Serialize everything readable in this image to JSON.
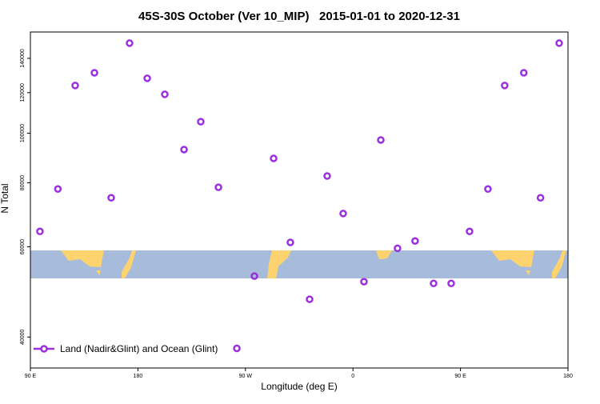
{
  "chart_data": {
    "type": "scatter",
    "title": "45S-30S October (Ver 10_MIP)   2015-01-01 to 2020-12-31",
    "x_label": "Longitude (deg E)",
    "y_label": "N Total",
    "yscale": "log",
    "legend": "bottom-left",
    "xlim": [
      90,
      540
    ],
    "ylim": [
      34800,
      157600
    ],
    "xticks": [
      {
        "value": 90,
        "label": "90 E"
      },
      180,
      {
        "value": 270,
        "label": "90 W"
      },
      {
        "value": 360,
        "label": "0"
      },
      {
        "value": 450,
        "label": "90 E"
      },
      {
        "value": 540,
        "label": "180"
      }
    ],
    "yticks": [
      40000,
      60000,
      80000,
      100000,
      120000,
      140000
    ],
    "series": [
      {
        "name": "Land (Nadir&Glint) and Ocean (Glint)",
        "color": "#9b2fe0",
        "x": [
          98,
          113,
          127.5,
          143.6,
          157.6,
          173,
          187.8,
          202.5,
          218.6,
          232.6,
          247.4,
          262.8,
          277.5,
          293.6,
          307.6,
          323.7,
          338.4,
          351.8,
          369.2,
          383.3,
          397.3,
          412,
          427.5,
          442.2,
          457.6,
          473,
          487,
          503,
          517,
          532.6
        ],
        "values": [
          64300,
          77800,
          123900,
          131200,
          74800,
          149900,
          128000,
          119100,
          92900,
          105300,
          78400,
          38000,
          52600,
          89300,
          61200,
          47400,
          82500,
          69700,
          51300,
          97000,
          59600,
          61600,
          50900,
          50900,
          64300,
          77800,
          123900,
          131200,
          74800,
          149900
        ]
      }
    ]
  }
}
